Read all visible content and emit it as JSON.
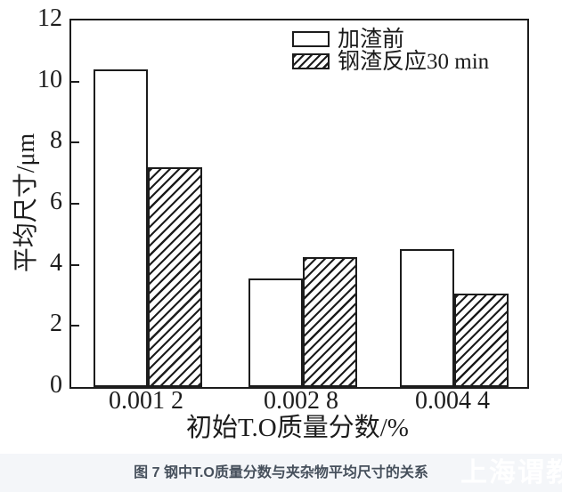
{
  "figure": {
    "caption": "图 7 钢中T.O质量分数与夹杂物平均尺寸的关系",
    "watermark": "上海谓教"
  },
  "chart_data": {
    "type": "bar",
    "title": "",
    "xlabel": "初始T.O质量分数/%",
    "ylabel": "平均尺寸/μm",
    "categories": [
      "0.001 2",
      "0.002 8",
      "0.004 4"
    ],
    "series": [
      {
        "name": "加渣前",
        "style": "plain",
        "values": [
          10.4,
          3.55,
          4.5
        ]
      },
      {
        "name": "钢渣反应30 min",
        "style": "hatched",
        "values": [
          7.2,
          4.25,
          3.05
        ]
      }
    ],
    "ylim": [
      0,
      12
    ],
    "yticks": [
      0,
      2,
      4,
      6,
      8,
      10,
      12
    ],
    "legend_position": "top-right-inside",
    "grid": false,
    "bar_colors": {
      "plain": "#ffffff",
      "hatched": "black-diagonal-hatch"
    },
    "line_color": "#1c1c1c"
  }
}
